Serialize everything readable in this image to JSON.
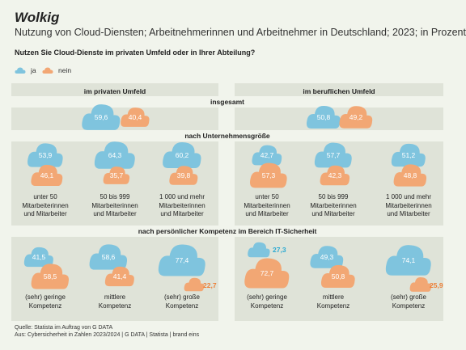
{
  "header": {
    "title": "Wolkig",
    "subtitle": "Nutzung von Cloud-Diensten; Arbeitnehmerinnen und Arbeitnehmer in Deutschland; 2023; in Prozent",
    "question": "Nutzen Sie Cloud-Dienste im privaten Umfeld oder in Ihrer Abteilung?"
  },
  "colors": {
    "ja": "#7fc4de",
    "nein": "#f2a774",
    "ja_text": "#2aa9d2",
    "nein_text": "#ec7e36"
  },
  "chart_data": {
    "type": "bubble",
    "legend": [
      "ja",
      "nein"
    ],
    "panels": [
      "im privaten Umfeld",
      "im beruflichen Umfeld"
    ],
    "sections": [
      {
        "label": "insgesamt",
        "groups": [
          {
            "panel": "im privaten Umfeld",
            "label": "",
            "ja": 59.6,
            "nein": 40.4,
            "ja_text": "59,6",
            "nein_text": "40,4"
          },
          {
            "panel": "im beruflichen Umfeld",
            "label": "",
            "ja": 50.8,
            "nein": 49.2,
            "ja_text": "50,8",
            "nein_text": "49,2"
          }
        ]
      },
      {
        "label": "nach Unternehmensgröße",
        "groups": [
          {
            "panel": "im privaten Umfeld",
            "label": "unter 50\nMitarbeiterinnen\nund Mitarbeiter",
            "ja": 53.9,
            "nein": 46.1,
            "ja_text": "53,9",
            "nein_text": "46,1"
          },
          {
            "panel": "im privaten Umfeld",
            "label": "50 bis 999\nMitarbeiterinnen\nund Mitarbeiter",
            "ja": 64.3,
            "nein": 35.7,
            "ja_text": "64,3",
            "nein_text": "35,7"
          },
          {
            "panel": "im privaten Umfeld",
            "label": "1 000 und mehr\nMitarbeiterinnen\nund Mitarbeiter",
            "ja": 60.2,
            "nein": 39.8,
            "ja_text": "60,2",
            "nein_text": "39,8"
          },
          {
            "panel": "im beruflichen Umfeld",
            "label": "unter 50\nMitarbeiterinnen\nund Mitarbeiter",
            "ja": 42.7,
            "nein": 57.3,
            "ja_text": "42,7",
            "nein_text": "57,3"
          },
          {
            "panel": "im beruflichen Umfeld",
            "label": "50 bis 999\nMitarbeiterinnen\nund Mitarbeiter",
            "ja": 57.7,
            "nein": 42.3,
            "ja_text": "57,7",
            "nein_text": "42,3"
          },
          {
            "panel": "im beruflichen Umfeld",
            "label": "1 000 und mehr\nMitarbeiterinnen\nund Mitarbeiter",
            "ja": 51.2,
            "nein": 48.8,
            "ja_text": "51,2",
            "nein_text": "48,8"
          }
        ]
      },
      {
        "label": "nach persönlicher Kompetenz im Bereich IT-Sicherheit",
        "groups": [
          {
            "panel": "im privaten Umfeld",
            "label": "(sehr) geringe\nKompetenz",
            "ja": 41.5,
            "nein": 58.5,
            "ja_text": "41,5",
            "nein_text": "58,5"
          },
          {
            "panel": "im privaten Umfeld",
            "label": "mittlere\nKompetenz",
            "ja": 58.6,
            "nein": 41.4,
            "ja_text": "58,6",
            "nein_text": "41,4"
          },
          {
            "panel": "im privaten Umfeld",
            "label": "(sehr) große\nKompetenz",
            "ja": 77.4,
            "nein": 22.7,
            "ja_text": "77,4",
            "nein_text": "22,7"
          },
          {
            "panel": "im beruflichen Umfeld",
            "label": "(sehr) geringe\nKompetenz",
            "ja": 27.3,
            "nein": 72.7,
            "ja_text": "27,3",
            "nein_text": "72,7"
          },
          {
            "panel": "im beruflichen Umfeld",
            "label": "mittlere\nKompetenz",
            "ja": 49.3,
            "nein": 50.8,
            "ja_text": "49,3",
            "nein_text": "50,8"
          },
          {
            "panel": "im beruflichen Umfeld",
            "label": "(sehr) große\nKompetenz",
            "ja": 74.1,
            "nein": 25.9,
            "ja_text": "74,1",
            "nein_text": "25,9"
          }
        ]
      }
    ]
  },
  "footer": {
    "source_line1": "Quelle: Statista im Auftrag von G DATA",
    "source_line2": "Aus: Cybersicherheit in Zahlen 2023/2024 | G DATA | Statista | brand eins"
  }
}
